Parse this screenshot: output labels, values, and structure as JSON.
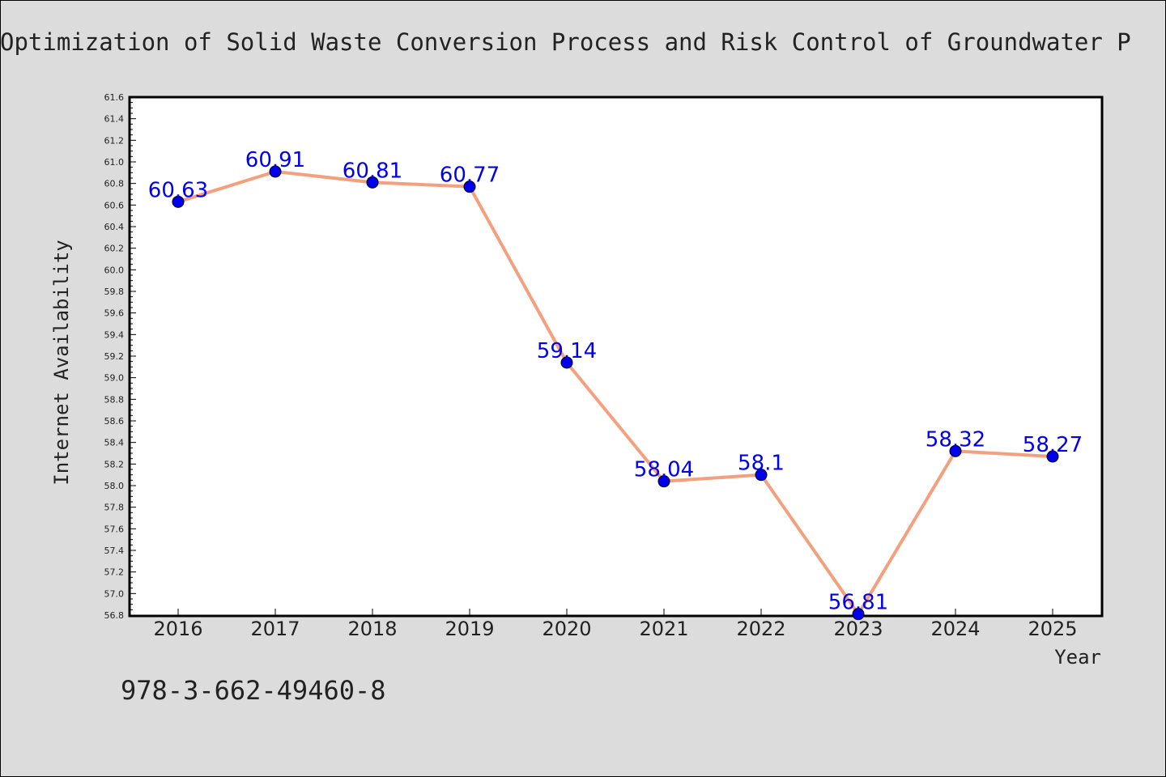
{
  "chart_data": {
    "type": "line",
    "title": "Optimization of Solid Waste Conversion Process and Risk Control of Groundwater P",
    "xlabel": "Year",
    "ylabel": "Internet Availability",
    "categories": [
      "2016",
      "2017",
      "2018",
      "2019",
      "2020",
      "2021",
      "2022",
      "2023",
      "2024",
      "2025"
    ],
    "values": [
      60.63,
      60.91,
      60.81,
      60.77,
      59.14,
      58.04,
      58.1,
      56.81,
      58.32,
      58.27
    ],
    "data_labels": [
      "60.63",
      "60.91",
      "60.81",
      "60.77",
      "59.14",
      "58.04",
      "58.1",
      "56.81",
      "58.32",
      "58.27"
    ],
    "ylim": [
      56.8,
      61.6
    ],
    "yticks": [
      "56.8",
      "57.0",
      "57.2",
      "57.4",
      "57.6",
      "57.8",
      "58.0",
      "58.2",
      "58.4",
      "58.6",
      "58.8",
      "59.0",
      "59.2",
      "59.4",
      "59.6",
      "59.8",
      "60.0",
      "60.2",
      "60.4",
      "60.6",
      "60.8",
      "61.0",
      "61.2",
      "61.4",
      "61.6"
    ],
    "grid": false,
    "legend": "none",
    "colors": {
      "line": "#f4a07f",
      "marker": "#0000ee",
      "label": "#0000ee",
      "background": "#dcdcdc",
      "plot_background": "#ffffff"
    }
  },
  "footer": {
    "isbn": "978-3-662-49460-8"
  }
}
